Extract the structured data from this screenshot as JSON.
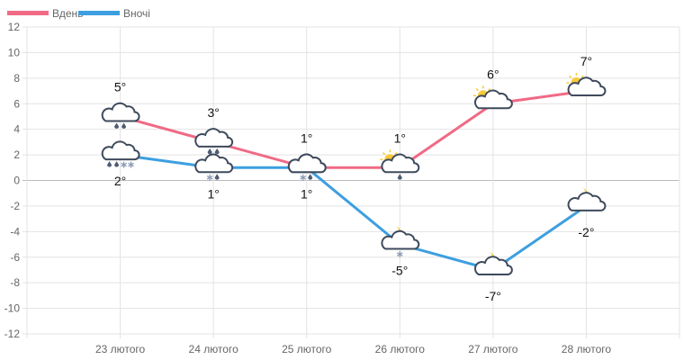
{
  "chart_data": {
    "type": "line",
    "categories": [
      "23 лютого",
      "24 лютого",
      "25 лютого",
      "26 лютого",
      "27 лютого",
      "28 лютого"
    ],
    "series": [
      {
        "name": "Вдень",
        "color": "#f06a85",
        "values": [
          5,
          3,
          1,
          1,
          6,
          7
        ],
        "labels": [
          "5°",
          "3°",
          "1°",
          "1°",
          "6°",
          "7°"
        ],
        "icons": [
          "cloud-rain-icon",
          "cloud-rain-icon",
          "cloud-icon",
          "sun-cloud-rain-icon",
          "sun-cloud-icon",
          "sun-cloud-icon"
        ]
      },
      {
        "name": "Вночі",
        "color": "#3d9fe0",
        "values": [
          2,
          1,
          1,
          -5,
          -7,
          -2
        ],
        "labels": [
          "2°",
          "1°",
          "1°",
          "-5°",
          "-7°",
          "-2°"
        ],
        "icons": [
          "cloud-rain-snow-icon",
          "cloud-sleet-icon",
          "cloud-sleet-icon",
          "moon-cloud-snow-icon",
          "moon-cloud-icon",
          "moon-cloud-icon"
        ]
      }
    ],
    "ylim": [
      -12,
      12
    ],
    "yticks": [
      "12",
      "10",
      "8",
      "6",
      "4",
      "2",
      "0",
      "-2",
      "-4",
      "-6",
      "-8",
      "-10",
      "-12"
    ],
    "grid": true,
    "legend": "top-left"
  }
}
